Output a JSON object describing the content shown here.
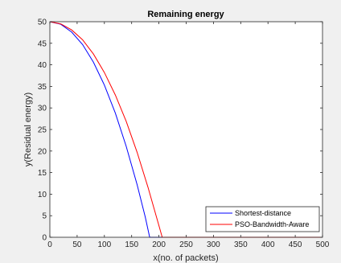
{
  "chart_data": {
    "type": "line",
    "title": "Remaining energy",
    "xlabel": "x(no. of packets)",
    "ylabel": "y(Residual energy)",
    "xlim": [
      0,
      500
    ],
    "ylim": [
      0,
      50
    ],
    "xticks": [
      0,
      50,
      100,
      150,
      200,
      250,
      300,
      350,
      400,
      450,
      500
    ],
    "yticks": [
      0,
      5,
      10,
      15,
      20,
      25,
      30,
      35,
      40,
      45,
      50
    ],
    "grid": false,
    "legend_position": "bottom-right",
    "series": [
      {
        "name": "Shortest-distance",
        "color": "#0000ff",
        "x": [
          0,
          20,
          40,
          60,
          80,
          100,
          120,
          140,
          160,
          175,
          183,
          190,
          250,
          300,
          350,
          400,
          450,
          500
        ],
        "y": [
          50,
          49.4,
          47.6,
          44.7,
          40.6,
          35.3,
          28.8,
          21.1,
          12.2,
          4.7,
          0,
          0,
          0,
          0,
          0,
          0,
          0,
          0
        ]
      },
      {
        "name": "PSO-Bandwidth-Aware",
        "color": "#ff0000",
        "x": [
          0,
          20,
          40,
          60,
          80,
          100,
          120,
          140,
          160,
          180,
          200,
          206,
          250,
          300,
          350,
          400,
          450,
          500
        ],
        "y": [
          50,
          49.5,
          48.1,
          45.8,
          42.5,
          38.2,
          33.0,
          26.9,
          19.7,
          11.6,
          2.7,
          0,
          0,
          0,
          0,
          0,
          0,
          0
        ]
      }
    ]
  }
}
